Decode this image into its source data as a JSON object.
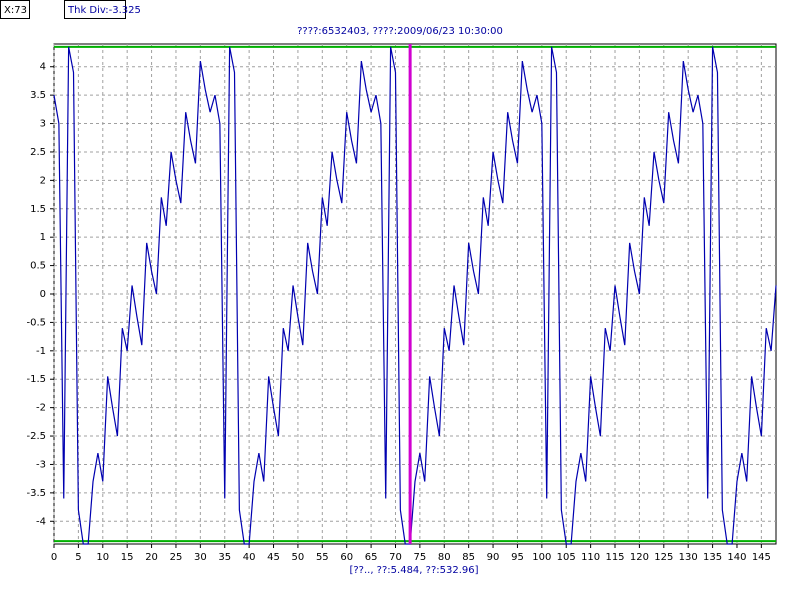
{
  "status": {
    "cursor_label": "X:73",
    "thickness_label": "Thk Div:-3.325"
  },
  "chart_data": {
    "type": "line",
    "title": "????:6532403, ????:2009/06/23 10:30:00",
    "footer": "[??.., ??:5.484, ??:532.96]",
    "x": [
      0,
      1,
      2,
      3,
      4,
      5,
      6,
      7,
      8,
      9,
      10,
      11,
      12,
      13,
      14,
      15,
      16,
      17,
      18,
      19,
      20,
      21,
      22,
      23,
      24,
      25,
      26,
      27,
      28,
      29,
      30,
      31,
      32,
      33,
      34,
      35,
      36,
      37,
      38,
      39,
      40,
      41,
      42,
      43,
      44,
      45,
      46,
      47,
      48,
      49,
      50,
      51,
      52,
      53,
      54,
      55,
      56,
      57,
      58,
      59,
      60,
      61,
      62,
      63,
      64,
      65,
      66,
      67,
      68,
      69,
      70,
      71,
      72,
      73,
      74,
      75,
      76,
      77,
      78,
      79,
      80,
      81,
      82,
      83,
      84,
      85,
      86,
      87,
      88,
      89,
      90,
      91,
      92,
      93,
      94,
      95,
      96,
      97,
      98,
      99,
      100,
      101,
      102,
      103,
      104,
      105,
      106,
      107,
      108,
      109,
      110,
      111,
      112,
      113,
      114,
      115,
      116,
      117,
      118,
      119,
      120,
      121,
      122,
      123,
      124,
      125,
      126,
      127,
      128,
      129,
      130,
      131,
      132,
      133,
      134,
      135,
      136,
      137,
      138,
      139,
      140,
      141,
      142,
      143,
      144,
      145,
      146,
      147,
      148
    ],
    "series": [
      {
        "color": "#0000b0",
        "values": [
          3.5,
          3.0,
          -3.6,
          4.35,
          3.9,
          -3.8,
          -4.4,
          -4.4,
          -3.3,
          -2.8,
          -3.3,
          -1.45,
          -2.0,
          -2.5,
          -0.6,
          -1.0,
          0.15,
          -0.4,
          -0.9,
          0.9,
          0.4,
          0,
          1.7,
          1.2,
          2.5,
          2.0,
          1.6,
          3.2,
          2.7,
          2.3,
          4.1,
          3.6,
          3.2,
          3.5,
          3.0,
          -3.6,
          4.35,
          3.9,
          -3.8,
          -4.4,
          -4.4,
          -3.3,
          -2.8,
          -3.3,
          -1.45,
          -2.0,
          -2.5,
          -0.6,
          -1.0,
          0.15,
          -0.4,
          -0.9,
          0.9,
          0.4,
          0,
          1.7,
          1.2,
          2.5,
          2.0,
          1.6,
          3.2,
          2.7,
          2.3,
          4.1,
          3.6,
          3.2,
          3.5,
          3.0,
          -3.6,
          4.35,
          3.9,
          -3.8,
          -4.4,
          -4.4,
          -3.3,
          -2.8,
          -3.3,
          -1.45,
          -2.0,
          -2.5,
          -0.6,
          -1.0,
          0.15,
          -0.4,
          -0.9,
          0.9,
          0.4,
          0,
          1.7,
          1.2,
          2.5,
          2.0,
          1.6,
          3.2,
          2.7,
          2.3,
          4.1,
          3.6,
          3.2,
          3.5,
          3.0,
          -3.6,
          4.35,
          3.9,
          -3.8,
          -4.4,
          -4.4,
          -3.3,
          -2.8,
          -3.3,
          -1.45,
          -2.0,
          -2.5,
          -0.6,
          -1.0,
          0.15,
          -0.4,
          -0.9,
          0.9,
          0.4,
          0,
          1.7,
          1.2,
          2.5,
          2.0,
          1.6,
          3.2,
          2.7,
          2.3,
          4.1,
          3.6,
          3.2,
          3.5,
          3.0,
          -3.6,
          4.35,
          3.9,
          -3.8,
          -4.4,
          -4.4,
          -3.3,
          -2.8,
          -3.3,
          -1.45,
          -2.0,
          -2.5,
          -0.6,
          -1.0,
          0.15
        ]
      }
    ],
    "xlim": [
      0,
      148
    ],
    "ylim": [
      -4.4,
      4.4
    ],
    "xticks": [
      0,
      5,
      10,
      15,
      20,
      25,
      30,
      35,
      40,
      45,
      50,
      55,
      60,
      65,
      70,
      75,
      80,
      85,
      90,
      95,
      100,
      105,
      110,
      115,
      120,
      125,
      130,
      135,
      140,
      145
    ],
    "yticks": [
      4,
      3.5,
      3,
      2.5,
      2,
      1.5,
      1,
      0.5,
      0,
      -0.5,
      -1,
      -1.5,
      -2,
      -2.5,
      -3,
      -3.5,
      -4
    ],
    "grid": true,
    "grid_color": "#a0a0a0",
    "upper_limit": 4.35,
    "lower_limit": -4.35,
    "limit_color": "#00b000",
    "cursor_x": 73,
    "cursor_color": "#d000d0"
  }
}
